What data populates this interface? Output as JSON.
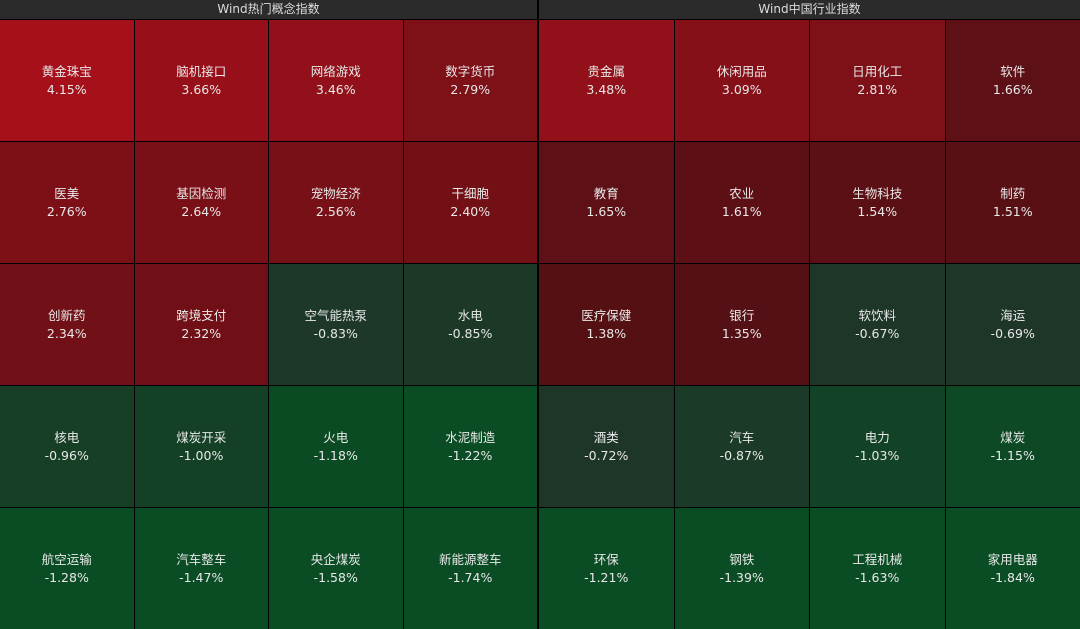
{
  "panels": [
    {
      "title": "Wind热门概念指数",
      "cells": [
        {
          "name": "黄金珠宝",
          "change": "4.15%"
        },
        {
          "name": "脑机接口",
          "change": "3.66%"
        },
        {
          "name": "网络游戏",
          "change": "3.46%"
        },
        {
          "name": "数字货币",
          "change": "2.79%"
        },
        {
          "name": "医美",
          "change": "2.76%"
        },
        {
          "name": "基因检测",
          "change": "2.64%"
        },
        {
          "name": "宠物经济",
          "change": "2.56%"
        },
        {
          "name": "干细胞",
          "change": "2.40%"
        },
        {
          "name": "创新药",
          "change": "2.34%"
        },
        {
          "name": "跨境支付",
          "change": "2.32%"
        },
        {
          "name": "空气能热泵",
          "change": "-0.83%"
        },
        {
          "name": "水电",
          "change": "-0.85%"
        },
        {
          "name": "核电",
          "change": "-0.96%"
        },
        {
          "name": "煤炭开采",
          "change": "-1.00%"
        },
        {
          "name": "火电",
          "change": "-1.18%"
        },
        {
          "name": "水泥制造",
          "change": "-1.22%"
        },
        {
          "name": "航空运输",
          "change": "-1.28%"
        },
        {
          "name": "汽车整车",
          "change": "-1.47%"
        },
        {
          "name": "央企煤炭",
          "change": "-1.58%"
        },
        {
          "name": "新能源整车",
          "change": "-1.74%"
        }
      ]
    },
    {
      "title": "Wind中国行业指数",
      "cells": [
        {
          "name": "贵金属",
          "change": "3.48%"
        },
        {
          "name": "休闲用品",
          "change": "3.09%"
        },
        {
          "name": "日用化工",
          "change": "2.81%"
        },
        {
          "name": "软件",
          "change": "1.66%"
        },
        {
          "name": "教育",
          "change": "1.65%"
        },
        {
          "name": "农业",
          "change": "1.61%"
        },
        {
          "name": "生物科技",
          "change": "1.54%"
        },
        {
          "name": "制药",
          "change": "1.51%"
        },
        {
          "name": "医疗保健",
          "change": "1.38%"
        },
        {
          "name": "银行",
          "change": "1.35%"
        },
        {
          "name": "软饮料",
          "change": "-0.67%"
        },
        {
          "name": "海运",
          "change": "-0.69%"
        },
        {
          "name": "酒类",
          "change": "-0.72%"
        },
        {
          "name": "汽车",
          "change": "-0.87%"
        },
        {
          "name": "电力",
          "change": "-1.03%"
        },
        {
          "name": "煤炭",
          "change": "-1.15%"
        },
        {
          "name": "环保",
          "change": "-1.21%"
        },
        {
          "name": "钢铁",
          "change": "-1.39%"
        },
        {
          "name": "工程机械",
          "change": "-1.63%"
        },
        {
          "name": "家用电器",
          "change": "-1.84%"
        }
      ]
    }
  ]
}
